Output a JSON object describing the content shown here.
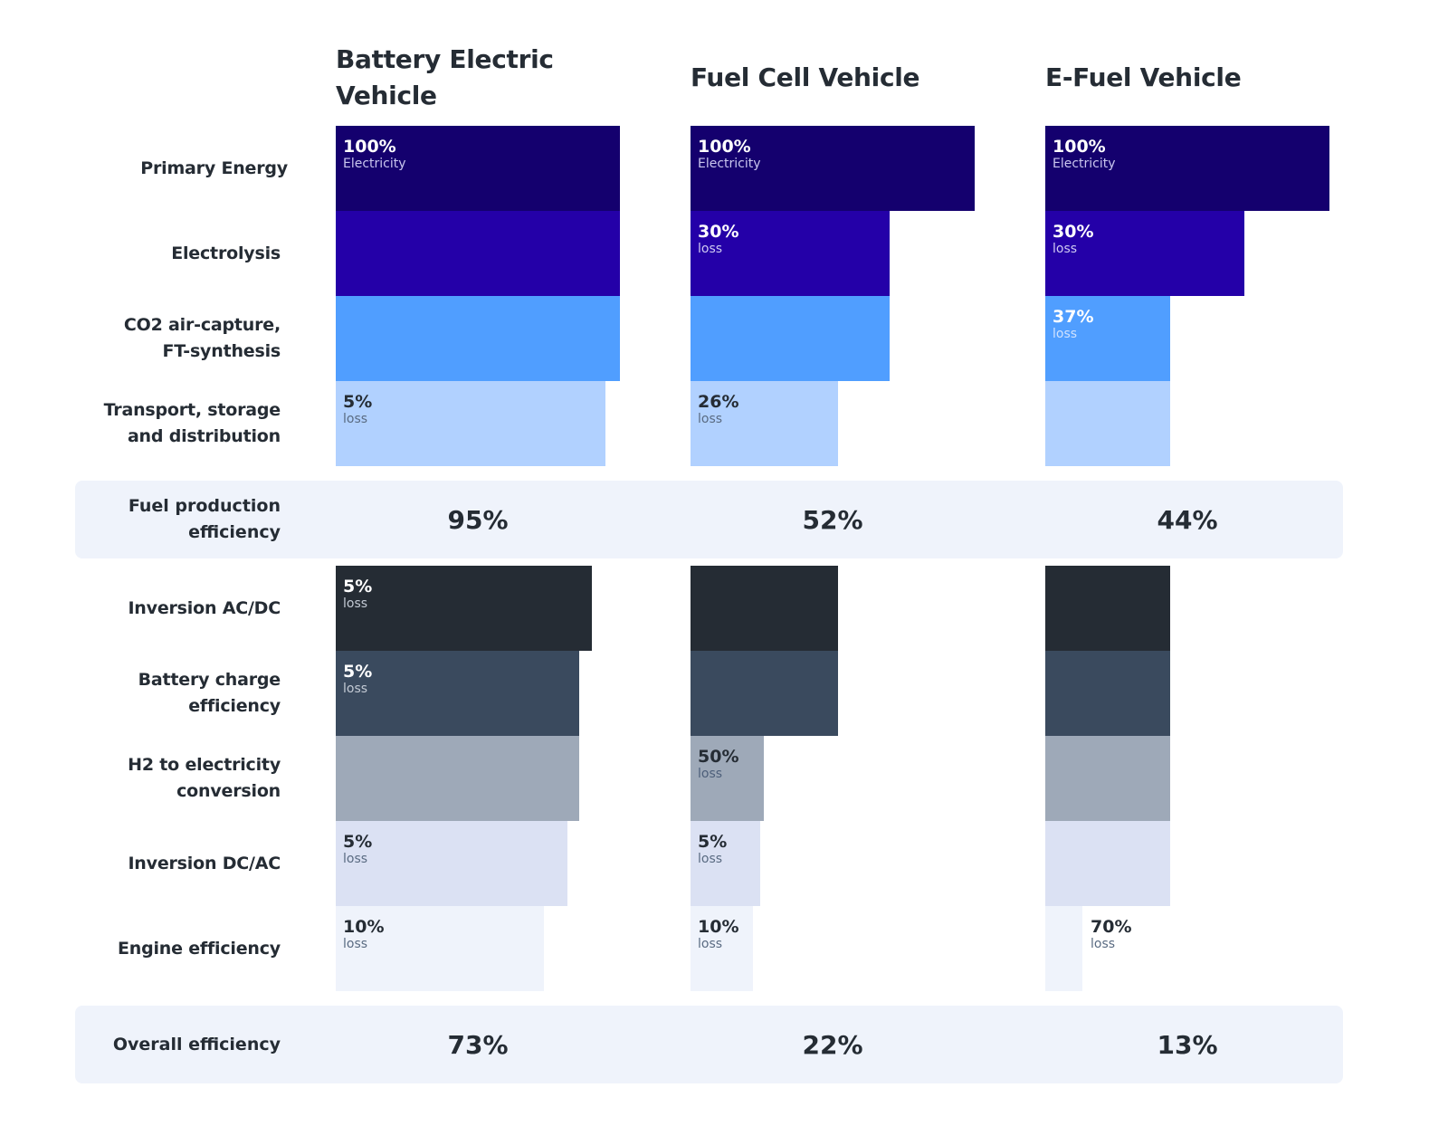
{
  "chart_data": {
    "type": "bar",
    "orientation": "horizontal",
    "xlim": [
      0,
      100
    ],
    "grid": false,
    "vehicles": [
      "Battery Electric Vehicle",
      "Fuel Cell Vehicle",
      "E-Fuel Vehicle"
    ],
    "stages": [
      "Primary Energy",
      "Electrolysis",
      "CO2 air-capture,\nFT-synthesis",
      "Transport, storage\nand distribution",
      "Inversion AC/DC",
      "Battery charge\nefficiency",
      "H2 to electricity\nconversion",
      "Inversion DC/AC",
      "Engine efficiency"
    ],
    "stage_colors": [
      "#14006e",
      "#2400a8",
      "#509eff",
      "#b1d1ff",
      "#252c34",
      "#3a4a5e",
      "#9ea9b8",
      "#dbe1f3",
      "#eff3fb"
    ],
    "series": [
      {
        "name": "Battery Electric Vehicle",
        "remaining_percent": [
          100,
          100,
          100,
          95,
          90.25,
          85.7,
          85.7,
          81.4,
          73.3
        ],
        "labels": [
          [
            "100%",
            "Electricity"
          ],
          null,
          null,
          [
            "5%",
            "loss"
          ],
          [
            "5%",
            "loss"
          ],
          [
            "5%",
            "loss"
          ],
          null,
          [
            "5%",
            "loss"
          ],
          [
            "10%",
            "loss"
          ]
        ]
      },
      {
        "name": "Fuel Cell Vehicle",
        "remaining_percent": [
          100,
          70,
          70,
          51.8,
          51.8,
          51.8,
          25.9,
          24.6,
          22.1
        ],
        "labels": [
          [
            "100%",
            "Electricity"
          ],
          [
            "30%",
            "loss"
          ],
          null,
          [
            "26%",
            "loss"
          ],
          null,
          null,
          [
            "50%",
            "loss"
          ],
          [
            "5%",
            "loss"
          ],
          [
            "10%",
            "loss"
          ]
        ]
      },
      {
        "name": "E-Fuel Vehicle",
        "remaining_percent": [
          100,
          70,
          44.1,
          44.1,
          44.1,
          44.1,
          44.1,
          44.1,
          13.2
        ],
        "labels": [
          [
            "100%",
            "Electricity"
          ],
          [
            "30%",
            "loss"
          ],
          [
            "37%",
            "loss"
          ],
          null,
          null,
          null,
          null,
          null,
          [
            "70%",
            "loss"
          ]
        ]
      }
    ],
    "summaries": [
      {
        "label": "Fuel production\nefficiency",
        "values": [
          "95%",
          "52%",
          "44%"
        ]
      },
      {
        "label": "Overall efficiency",
        "values": [
          "73%",
          "22%",
          "13%"
        ]
      }
    ]
  }
}
